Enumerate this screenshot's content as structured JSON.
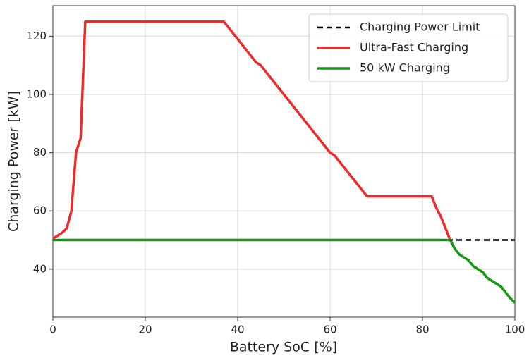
{
  "chart_data": {
    "type": "line",
    "x_label": "Battery SoC [%]",
    "y_label": "Charging Power [kW]",
    "xlim": [
      0,
      100
    ],
    "ylim": [
      23.5,
      130.5
    ],
    "xticks": [
      0,
      20,
      40,
      60,
      80,
      100
    ],
    "yticks": [
      40,
      60,
      80,
      100,
      120
    ],
    "grid": true,
    "legend": "upper right",
    "series": [
      {
        "name": "Charging Power Limit",
        "color": "#000000",
        "dash": true,
        "x": [
          0,
          100
        ],
        "values": [
          50,
          50
        ]
      },
      {
        "name": "Ultra-Fast Charging",
        "color": "#ee2a2a",
        "x": [
          0,
          1,
          2,
          3,
          4,
          5,
          6,
          7,
          37,
          44,
          45,
          60,
          61,
          68,
          82,
          83,
          84,
          86
        ],
        "values": [
          50.5,
          51.5,
          52.5,
          54,
          60,
          80,
          85,
          125,
          125,
          111,
          110,
          80,
          79,
          65,
          65,
          61,
          58,
          50
        ]
      },
      {
        "name": "50 kW Charging",
        "color": "#119911",
        "x": [
          0,
          86,
          87,
          88,
          89,
          90,
          91,
          92,
          93,
          94,
          95,
          96,
          97,
          98,
          99,
          100
        ],
        "values": [
          50,
          50,
          47,
          45,
          44,
          43,
          41,
          40,
          39,
          37,
          36,
          35,
          34,
          32,
          30,
          28.5
        ]
      }
    ]
  }
}
